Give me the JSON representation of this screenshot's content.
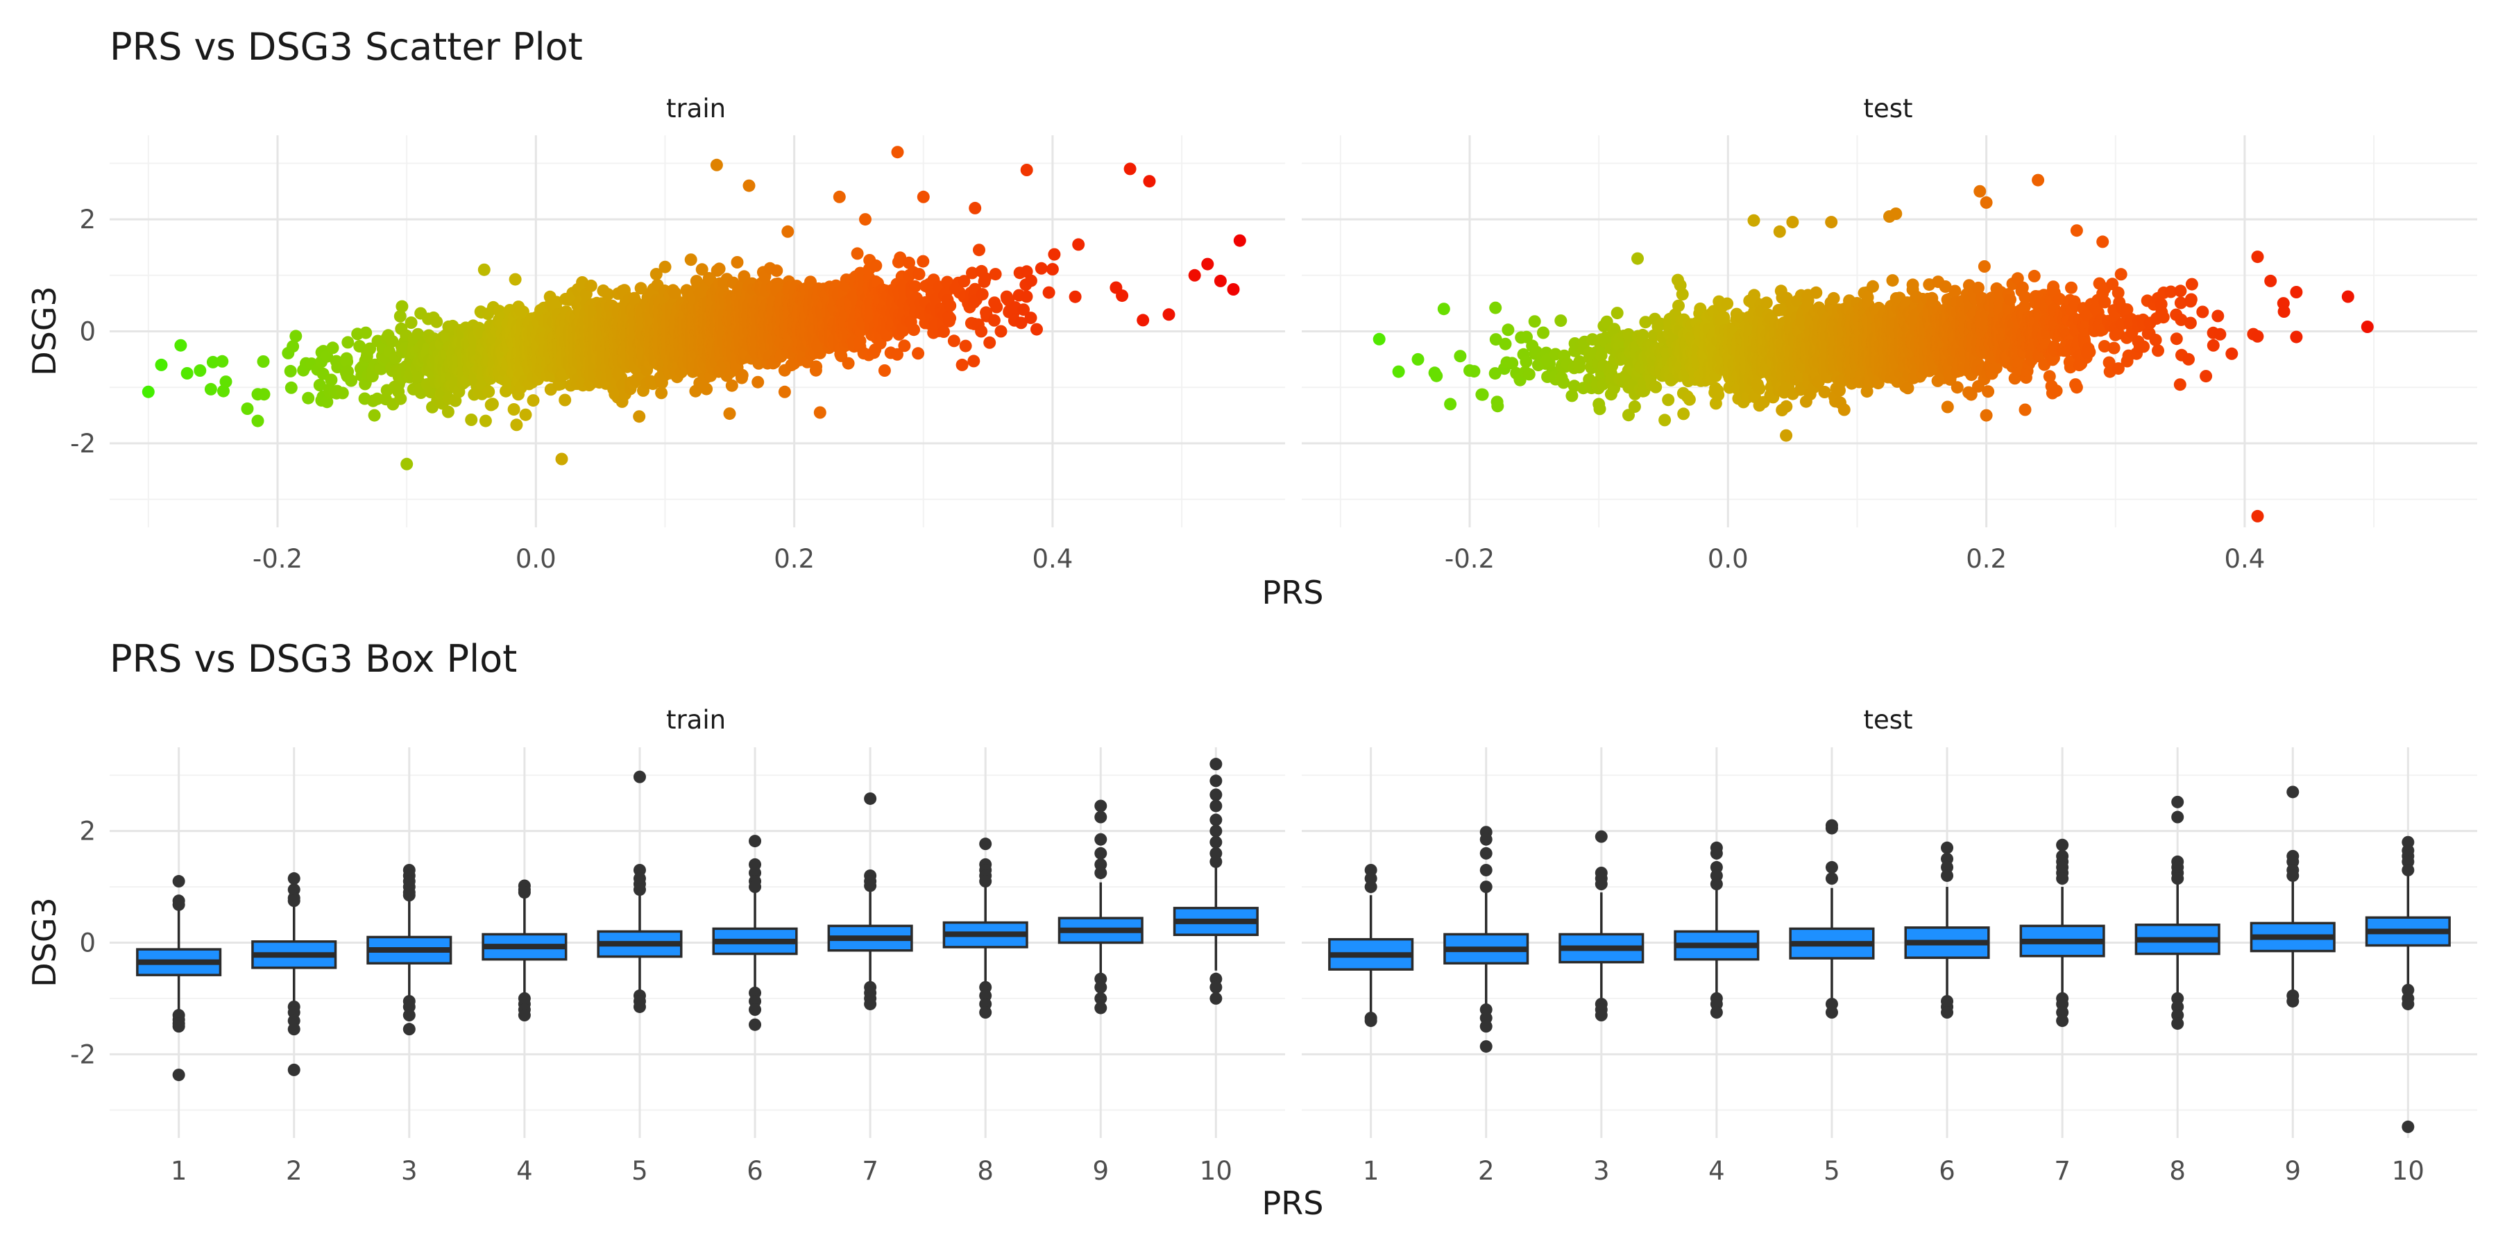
{
  "chart_data": [
    {
      "type": "scatter",
      "title": "PRS vs DSG3 Scatter Plot",
      "xlabel": "PRS",
      "ylabel": "DSG3",
      "facets": [
        "train",
        "test"
      ],
      "xlim": [
        -0.33,
        0.58
      ],
      "ylim": [
        -3.5,
        3.5
      ],
      "xticks": [
        -0.2,
        0.0,
        0.2,
        0.4
      ],
      "xtick_labels": [
        "-0.2",
        "0.0",
        "0.2",
        "0.4"
      ],
      "yticks": [
        -2,
        0,
        2
      ],
      "ytick_labels": [
        "-2",
        "0",
        "2"
      ],
      "grid": true,
      "legend": "none",
      "color_gradient": [
        "#44ee00",
        "#c8b400",
        "#f25a00",
        "#f00000"
      ],
      "panels": [
        {
          "name": "train",
          "approx_x_range": [
            -0.3,
            0.55
          ],
          "trend": {
            "slope": 2.5,
            "intercept": -0.3,
            "spread_sd": 0.35
          },
          "points": [
            [
              -0.3,
              -1.08
            ],
            [
              -0.29,
              -0.6
            ],
            [
              -0.275,
              -0.25
            ],
            [
              -0.27,
              -0.75
            ],
            [
              -0.26,
              -0.7
            ],
            [
              -0.25,
              -0.55
            ],
            [
              -0.24,
              -0.9
            ],
            [
              -0.1,
              -2.37
            ],
            [
              0.02,
              -2.28
            ],
            [
              0.08,
              -1.52
            ],
            [
              0.15,
              -1.47
            ],
            [
              0.14,
              2.97
            ],
            [
              0.165,
              2.6
            ],
            [
              0.195,
              1.78
            ],
            [
              0.235,
              2.4
            ],
            [
              0.28,
              3.2
            ],
            [
              0.255,
              2.0
            ],
            [
              0.3,
              2.4
            ],
            [
              0.34,
              2.2
            ],
            [
              0.38,
              2.88
            ],
            [
              0.46,
              2.9
            ],
            [
              0.475,
              2.68
            ],
            [
              0.52,
              1.2
            ],
            [
              0.53,
              0.9
            ],
            [
              0.54,
              0.75
            ],
            [
              0.545,
              1.62
            ],
            [
              0.51,
              1.0
            ],
            [
              0.49,
              0.3
            ],
            [
              0.47,
              0.2
            ],
            [
              -0.125,
              -1.5
            ],
            [
              -0.05,
              -1.58
            ],
            [
              -0.015,
              -1.67
            ],
            [
              0.1,
              1.15
            ],
            [
              0.12,
              1.28
            ],
            [
              -0.04,
              1.1
            ],
            [
              0.22,
              -1.45
            ],
            [
              0.27,
              -0.7
            ],
            [
              0.33,
              -0.6
            ],
            [
              0.36,
              0.0
            ],
            [
              0.42,
              1.55
            ]
          ]
        },
        {
          "name": "test",
          "approx_x_range": [
            -0.27,
            0.5
          ],
          "trend": {
            "slope": 1.5,
            "intercept": -0.35,
            "spread_sd": 0.35
          },
          "points": [
            [
              -0.27,
              -0.14
            ],
            [
              -0.255,
              -0.72
            ],
            [
              -0.24,
              -0.5
            ],
            [
              -0.22,
              0.4
            ],
            [
              -0.215,
              -1.3
            ],
            [
              -0.2,
              -0.7
            ],
            [
              -0.19,
              -1.13
            ],
            [
              -0.18,
              0.42
            ],
            [
              0.045,
              -1.86
            ],
            [
              0.09,
              -1.4
            ],
            [
              0.02,
              1.98
            ],
            [
              0.05,
              1.95
            ],
            [
              0.04,
              1.78
            ],
            [
              -0.07,
              1.3
            ],
            [
              0.08,
              1.95
            ],
            [
              0.125,
              2.05
            ],
            [
              0.13,
              2.1
            ],
            [
              0.195,
              2.5
            ],
            [
              0.2,
              2.3
            ],
            [
              0.24,
              2.7
            ],
            [
              0.27,
              1.8
            ],
            [
              0.29,
              1.6
            ],
            [
              0.41,
              1.33
            ],
            [
              0.41,
              -3.3
            ],
            [
              0.48,
              0.62
            ],
            [
              0.495,
              0.08
            ],
            [
              0.44,
              -0.1
            ],
            [
              0.43,
              0.5
            ],
            [
              0.2,
              -1.5
            ],
            [
              0.23,
              -1.4
            ],
            [
              0.17,
              -1.35
            ],
            [
              0.27,
              -1.0
            ],
            [
              0.35,
              -0.95
            ],
            [
              0.37,
              -0.8
            ],
            [
              -0.1,
              -1.3
            ],
            [
              0.42,
              0.9
            ],
            [
              0.44,
              0.7
            ],
            [
              0.39,
              -0.4
            ]
          ]
        }
      ]
    },
    {
      "type": "box",
      "title": "PRS vs DSG3 Box Plot",
      "xlabel": "PRS",
      "ylabel": "DSG3",
      "facets": [
        "train",
        "test"
      ],
      "categories": [
        "1",
        "2",
        "3",
        "4",
        "5",
        "6",
        "7",
        "8",
        "9",
        "10"
      ],
      "ylim": [
        -3.5,
        3.5
      ],
      "yticks": [
        -2,
        0,
        2
      ],
      "ytick_labels": [
        "-2",
        "0",
        "2"
      ],
      "grid": true,
      "legend": "none",
      "box_fill": "#1e90ff",
      "box_outline": "#2b2b2b",
      "panels": [
        {
          "name": "train",
          "boxes": [
            {
              "q1": -0.58,
              "median": -0.35,
              "q3": -0.12,
              "whisker_low": -1.25,
              "whisker_high": 0.6,
              "outliers": [
                1.1,
                0.75,
                0.68,
                -1.3,
                -1.38,
                -1.45,
                -1.5,
                -2.37
              ]
            },
            {
              "q1": -0.45,
              "median": -0.22,
              "q3": 0.02,
              "whisker_low": -1.1,
              "whisker_high": 0.7,
              "outliers": [
                1.15,
                0.95,
                0.8,
                0.75,
                -1.15,
                -1.25,
                -1.4,
                -1.55,
                -2.28
              ]
            },
            {
              "q1": -0.37,
              "median": -0.13,
              "q3": 0.1,
              "whisker_low": -1.0,
              "whisker_high": 0.78,
              "outliers": [
                1.3,
                1.2,
                1.1,
                1.0,
                0.9,
                0.85,
                -1.05,
                -1.15,
                -1.3,
                -1.55
              ]
            },
            {
              "q1": -0.3,
              "median": -0.07,
              "q3": 0.15,
              "whisker_low": -0.95,
              "whisker_high": 0.85,
              "outliers": [
                1.02,
                0.95,
                0.9,
                -1.0,
                -1.1,
                -1.2,
                -1.3
              ]
            },
            {
              "q1": -0.25,
              "median": -0.02,
              "q3": 0.2,
              "whisker_low": -0.85,
              "whisker_high": 0.88,
              "outliers": [
                2.97,
                1.3,
                1.15,
                1.05,
                0.95,
                -0.95,
                -1.05,
                -1.15
              ]
            },
            {
              "q1": -0.2,
              "median": 0.02,
              "q3": 0.25,
              "whisker_low": -0.85,
              "whisker_high": 0.92,
              "outliers": [
                1.82,
                1.4,
                1.25,
                1.1,
                1.0,
                -0.9,
                -1.05,
                -1.2,
                -1.47
              ]
            },
            {
              "q1": -0.14,
              "median": 0.08,
              "q3": 0.3,
              "whisker_low": -0.75,
              "whisker_high": 0.95,
              "outliers": [
                2.58,
                1.2,
                1.1,
                1.02,
                -0.8,
                -0.9,
                -1.0,
                -1.1
              ]
            },
            {
              "q1": -0.08,
              "median": 0.15,
              "q3": 0.36,
              "whisker_low": -0.75,
              "whisker_high": 1.0,
              "outliers": [
                1.77,
                1.4,
                1.3,
                1.2,
                1.1,
                -0.8,
                -0.95,
                -1.1,
                -1.25
              ]
            },
            {
              "q1": 0.0,
              "median": 0.22,
              "q3": 0.44,
              "whisker_low": -0.6,
              "whisker_high": 1.08,
              "outliers": [
                2.45,
                2.25,
                1.85,
                1.6,
                1.4,
                1.25,
                -0.65,
                -0.8,
                -1.0,
                -1.17
              ]
            },
            {
              "q1": 0.14,
              "median": 0.38,
              "q3": 0.62,
              "whisker_low": -0.5,
              "whisker_high": 1.35,
              "outliers": [
                3.2,
                2.9,
                2.65,
                2.45,
                2.2,
                2.0,
                1.8,
                1.6,
                1.45,
                -0.65,
                -0.8,
                -1.0
              ]
            }
          ]
        },
        {
          "name": "test",
          "boxes": [
            {
              "q1": -0.48,
              "median": -0.22,
              "q3": 0.06,
              "whisker_low": -1.3,
              "whisker_high": 0.85,
              "outliers": [
                1.3,
                1.15,
                1.0,
                -1.35,
                -1.4
              ]
            },
            {
              "q1": -0.37,
              "median": -0.12,
              "q3": 0.15,
              "whisker_low": -1.1,
              "whisker_high": 0.9,
              "outliers": [
                1.98,
                1.85,
                1.6,
                1.3,
                1.0,
                -1.2,
                -1.35,
                -1.5,
                -1.86
              ]
            },
            {
              "q1": -0.35,
              "median": -0.1,
              "q3": 0.15,
              "whisker_low": -1.0,
              "whisker_high": 0.9,
              "outliers": [
                1.9,
                1.25,
                1.15,
                1.05,
                -1.1,
                -1.2,
                -1.3
              ]
            },
            {
              "q1": -0.3,
              "median": -0.05,
              "q3": 0.2,
              "whisker_low": -1.0,
              "whisker_high": 0.95,
              "outliers": [
                1.7,
                1.6,
                1.35,
                1.2,
                1.05,
                -1.0,
                -1.1,
                -1.25
              ]
            },
            {
              "q1": -0.28,
              "median": -0.02,
              "q3": 0.25,
              "whisker_low": -1.0,
              "whisker_high": 0.98,
              "outliers": [
                2.1,
                2.05,
                1.35,
                1.15,
                -1.1,
                -1.25
              ]
            },
            {
              "q1": -0.27,
              "median": 0.0,
              "q3": 0.27,
              "whisker_low": -1.0,
              "whisker_high": 1.0,
              "outliers": [
                1.7,
                1.5,
                1.35,
                1.2,
                -1.05,
                -1.15,
                -1.25
              ]
            },
            {
              "q1": -0.24,
              "median": 0.02,
              "q3": 0.3,
              "whisker_low": -0.95,
              "whisker_high": 1.0,
              "outliers": [
                1.75,
                1.55,
                1.45,
                1.35,
                1.25,
                1.15,
                -1.0,
                -1.1,
                -1.25,
                -1.4
              ]
            },
            {
              "q1": -0.2,
              "median": 0.05,
              "q3": 0.32,
              "whisker_low": -0.95,
              "whisker_high": 1.05,
              "outliers": [
                2.52,
                2.25,
                1.45,
                1.35,
                1.25,
                1.15,
                -1.0,
                -1.15,
                -1.3,
                -1.45
              ]
            },
            {
              "q1": -0.15,
              "median": 0.1,
              "q3": 0.35,
              "whisker_low": -0.85,
              "whisker_high": 1.1,
              "outliers": [
                2.7,
                1.55,
                1.45,
                1.3,
                1.2,
                -0.95,
                -1.05
              ]
            },
            {
              "q1": -0.05,
              "median": 0.2,
              "q3": 0.45,
              "whisker_low": -0.8,
              "whisker_high": 1.2,
              "outliers": [
                1.8,
                1.65,
                1.55,
                1.45,
                1.3,
                -0.85,
                -1.0,
                -1.1,
                -3.3
              ]
            }
          ]
        }
      ]
    }
  ]
}
